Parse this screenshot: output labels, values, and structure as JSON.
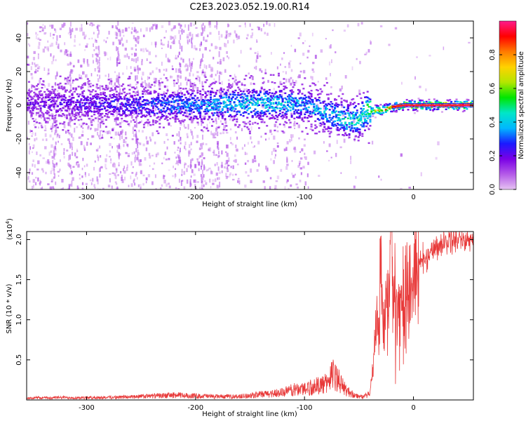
{
  "figure": {
    "title": "C2E3.2023.052.19.00.R14"
  },
  "colors": {
    "signal_line": "#e83a3a",
    "colormap": [
      "#e6c3f2",
      "#b45ae8",
      "#7a00e6",
      "#1a1aff",
      "#00b7ff",
      "#00e6c8",
      "#00e600",
      "#b4e600",
      "#ffd200",
      "#ff7a00",
      "#ff0000",
      "#ff1a8c"
    ]
  },
  "chart_data": [
    {
      "type": "heatmap",
      "xlabel": "Height of straight line (km)",
      "ylabel": "Frequency (Hz)",
      "xlim": [
        -355,
        55
      ],
      "ylim": [
        -50,
        50
      ],
      "xticks": [
        -300,
        -200,
        -100,
        0
      ],
      "yticks": [
        -40,
        -20,
        0,
        20,
        40
      ],
      "colorbar": {
        "label": "Normalized spectral amplitude",
        "range": [
          0.0,
          1.0
        ],
        "ticks": [
          0.0,
          0.2,
          0.4,
          0.6,
          0.8
        ]
      },
      "ridge_center_hz": [
        [
          -355,
          1
        ],
        [
          -300,
          1
        ],
        [
          -250,
          0
        ],
        [
          -200,
          0
        ],
        [
          -150,
          1
        ],
        [
          -120,
          1
        ],
        [
          -100,
          0
        ],
        [
          -90,
          -2
        ],
        [
          -80,
          -5
        ],
        [
          -70,
          -7
        ],
        [
          -60,
          -9
        ],
        [
          -50,
          -8
        ],
        [
          -45,
          -4
        ],
        [
          -40,
          -3
        ],
        [
          -30,
          -3
        ],
        [
          -20,
          -1
        ],
        [
          -10,
          0
        ],
        [
          0,
          0
        ],
        [
          10,
          0
        ],
        [
          20,
          0
        ],
        [
          30,
          0
        ],
        [
          55,
          0
        ]
      ],
      "ridge_peak_amplitude": [
        [
          -355,
          0.2
        ],
        [
          -250,
          0.3
        ],
        [
          -150,
          0.45
        ],
        [
          -100,
          0.4
        ],
        [
          -70,
          0.45
        ],
        [
          -50,
          0.5
        ],
        [
          -30,
          0.8
        ],
        [
          -20,
          0.9
        ],
        [
          -10,
          0.95
        ],
        [
          0,
          0.95
        ],
        [
          55,
          0.95
        ]
      ]
    },
    {
      "type": "line",
      "xlabel": "Height of straight line (km)",
      "ylabel": "SNR (10 * v/v)",
      "y_multiplier": "(x10^4)",
      "xlim": [
        -355,
        55
      ],
      "ylim": [
        0,
        21000
      ],
      "xticks": [
        -300,
        -200,
        -100,
        0
      ],
      "yticks": [
        5000,
        10000,
        15000,
        20000
      ],
      "ytick_labels": [
        "0.5",
        "1.0",
        "1.5",
        "2.0"
      ],
      "series": [
        {
          "points": [
            [
              -355,
              300
            ],
            [
              -320,
              350
            ],
            [
              -300,
              320
            ],
            [
              -270,
              400
            ],
            [
              -250,
              500
            ],
            [
              -220,
              700
            ],
            [
              -200,
              600
            ],
            [
              -180,
              500
            ],
            [
              -160,
              500
            ],
            [
              -140,
              800
            ],
            [
              -120,
              1100
            ],
            [
              -110,
              1500
            ],
            [
              -100,
              1700
            ],
            [
              -90,
              2000
            ],
            [
              -80,
              2400
            ],
            [
              -75,
              3800
            ],
            [
              -70,
              3200
            ],
            [
              -65,
              2000
            ],
            [
              -60,
              1200
            ],
            [
              -55,
              800
            ],
            [
              -50,
              500
            ],
            [
              -45,
              500
            ],
            [
              -40,
              900
            ],
            [
              -37,
              4000
            ],
            [
              -35,
              8000
            ],
            [
              -32,
              10500
            ],
            [
              -30,
              15500
            ],
            [
              -28,
              9000
            ],
            [
              -25,
              11000
            ],
            [
              -23,
              12500
            ],
            [
              -20,
              21000
            ],
            [
              -18,
              12000
            ],
            [
              -15,
              12000
            ],
            [
              -12,
              11000
            ],
            [
              -10,
              13000
            ],
            [
              -8,
              12500
            ],
            [
              -5,
              14000
            ],
            [
              -2,
              14000
            ],
            [
              0,
              15000
            ],
            [
              5,
              17000
            ],
            [
              10,
              17500
            ],
            [
              20,
              19000
            ],
            [
              30,
              19800
            ],
            [
              40,
              20200
            ],
            [
              50,
              20000
            ],
            [
              55,
              20000
            ]
          ]
        }
      ]
    }
  ]
}
